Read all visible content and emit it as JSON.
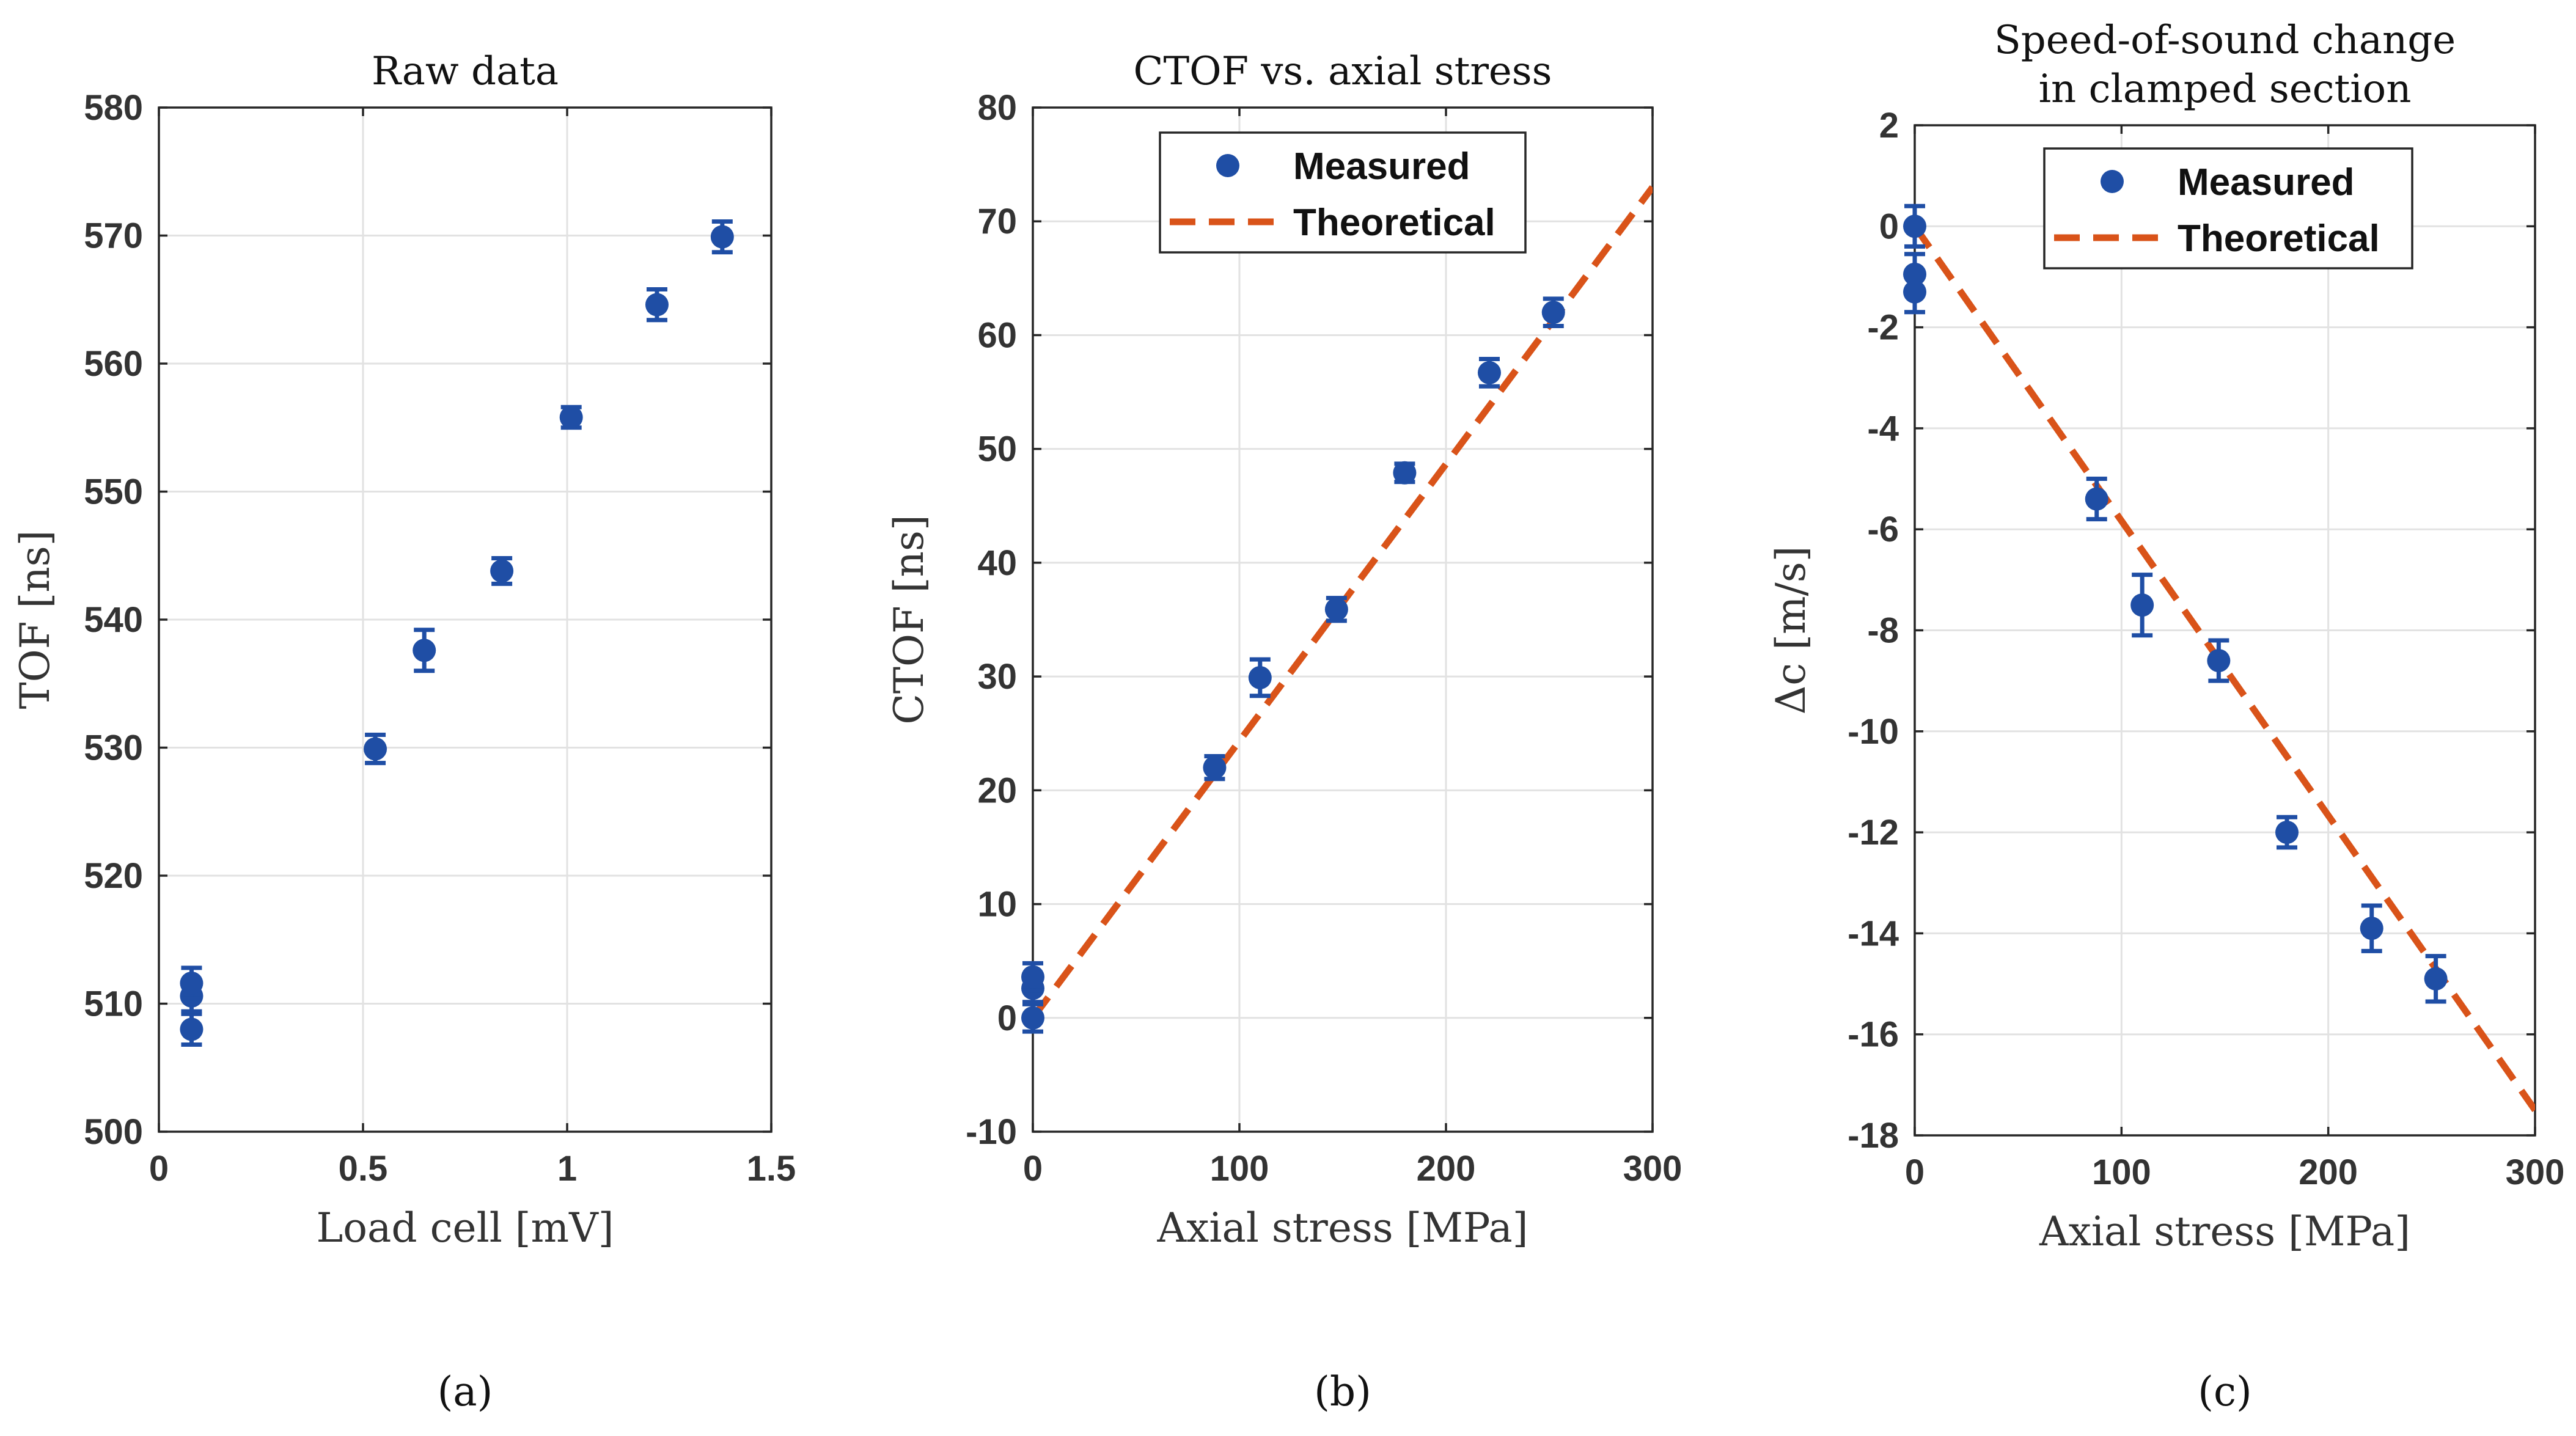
{
  "chart_data": [
    {
      "id": "a",
      "type": "scatter",
      "title": [
        "Raw data"
      ],
      "xlabel": "Load cell [mV]",
      "ylabel": "TOF [ns]",
      "xlim": [
        0,
        1.5
      ],
      "ylim": [
        500,
        580
      ],
      "xticks": [
        0,
        0.5,
        1,
        1.5
      ],
      "xtick_labels": [
        "0",
        "0.5",
        "1",
        "1.5"
      ],
      "yticks": [
        500,
        510,
        520,
        530,
        540,
        550,
        560,
        570,
        580
      ],
      "ytick_labels": [
        "500",
        "510",
        "520",
        "530",
        "540",
        "550",
        "560",
        "570",
        "580"
      ],
      "grid": true,
      "panel_label": "(a)",
      "series": [
        {
          "name": "Measured",
          "color": "#1f4ea5",
          "x": [
            0.08,
            0.08,
            0.08,
            0.53,
            0.65,
            0.84,
            1.01,
            1.22,
            1.38
          ],
          "y": [
            508.0,
            510.6,
            511.6,
            529.9,
            537.6,
            543.8,
            555.8,
            564.6,
            569.9
          ],
          "err": [
            1.2,
            1.2,
            1.2,
            1.1,
            1.6,
            1.0,
            0.8,
            1.2,
            1.2
          ]
        }
      ]
    },
    {
      "id": "b",
      "type": "scatter",
      "title": [
        "CTOF vs. axial stress"
      ],
      "xlabel": "Axial stress [MPa]",
      "ylabel": "CTOF [ns]",
      "xlim": [
        0,
        300
      ],
      "ylim": [
        -10,
        80
      ],
      "xticks": [
        0,
        100,
        200,
        300
      ],
      "xtick_labels": [
        "0",
        "100",
        "200",
        "300"
      ],
      "yticks": [
        -10,
        0,
        10,
        20,
        30,
        40,
        50,
        60,
        70,
        80
      ],
      "ytick_labels": [
        "-10",
        "0",
        "10",
        "20",
        "30",
        "40",
        "50",
        "60",
        "70",
        "80"
      ],
      "grid": true,
      "panel_label": "(b)",
      "legend": {
        "position": "top-center",
        "entries": [
          "Measured",
          "Theoretical"
        ]
      },
      "series": [
        {
          "name": "Measured",
          "color": "#1f4ea5",
          "x": [
            0,
            0,
            0,
            88,
            110,
            147,
            180,
            221,
            252
          ],
          "y": [
            0.0,
            2.6,
            3.6,
            22.0,
            29.9,
            35.9,
            47.9,
            56.7,
            62.0
          ],
          "err": [
            1.2,
            1.2,
            1.2,
            1.0,
            1.6,
            1.0,
            0.8,
            1.2,
            1.2
          ]
        },
        {
          "name": "Theoretical",
          "color": "#d95319",
          "style": "dashed",
          "x": [
            0,
            300
          ],
          "y": [
            0,
            73
          ]
        }
      ]
    },
    {
      "id": "c",
      "type": "scatter",
      "title": [
        "Speed-of-sound change",
        "in clamped section"
      ],
      "xlabel": "Axial stress [MPa]",
      "ylabel": "Δc [m/s]",
      "xlim": [
        0,
        300
      ],
      "ylim": [
        -18,
        2
      ],
      "xticks": [
        0,
        100,
        200,
        300
      ],
      "xtick_labels": [
        "0",
        "100",
        "200",
        "300"
      ],
      "yticks": [
        -18,
        -16,
        -14,
        -12,
        -10,
        -8,
        -6,
        -4,
        -2,
        0,
        2
      ],
      "ytick_labels": [
        "-18",
        "-16",
        "-14",
        "-12",
        "-10",
        "-8",
        "-6",
        "-4",
        "-2",
        "0",
        "2"
      ],
      "grid": true,
      "panel_label": "(c)",
      "legend": {
        "position": "top-center",
        "entries": [
          "Measured",
          "Theoretical"
        ]
      },
      "series": [
        {
          "name": "Measured",
          "color": "#1f4ea5",
          "x": [
            0,
            0,
            0,
            88,
            110,
            147,
            180,
            221,
            252
          ],
          "y": [
            0.0,
            -0.95,
            -1.3,
            -5.4,
            -7.5,
            -8.6,
            -12.0,
            -13.9,
            -14.9
          ],
          "err": [
            0.4,
            0.4,
            0.4,
            0.4,
            0.6,
            0.4,
            0.3,
            0.45,
            0.45
          ]
        },
        {
          "name": "Theoretical",
          "color": "#d95319",
          "style": "dashed",
          "x": [
            0,
            300
          ],
          "y": [
            0,
            -17.5
          ]
        }
      ]
    }
  ]
}
